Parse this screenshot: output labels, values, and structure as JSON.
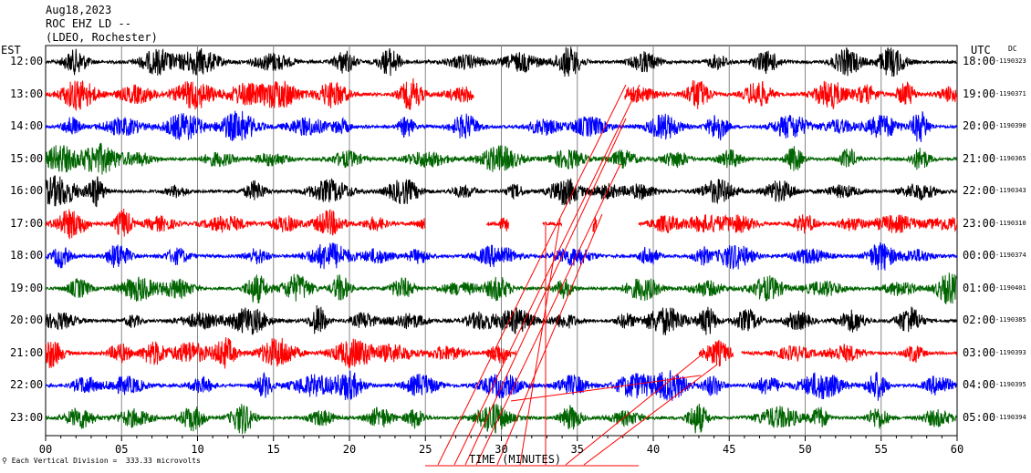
{
  "header": {
    "date": "Aug18,2023",
    "station": "ROC EHZ LD --",
    "network": "(LDEO, Rochester)"
  },
  "left_tz": "EST",
  "right_tz": "UTC",
  "dc_label": "DC",
  "footer": "Each Vertical Division =  333.33 microvolts",
  "chart_data": {
    "type": "line",
    "title": "",
    "xlabel": "TIME (MINUTES)",
    "xlim": [
      0,
      60
    ],
    "x_ticks": [
      "00",
      "05",
      "10",
      "15",
      "20",
      "25",
      "30",
      "35",
      "40",
      "45",
      "50",
      "55",
      "60"
    ],
    "grid": "vertical every minute of 5",
    "colors": [
      "#000000",
      "#ff0000",
      "#0000ff",
      "#006400"
    ],
    "rows": [
      {
        "est": "12:00",
        "utc": "18:00",
        "dc": "-1190323",
        "color": "#000000",
        "gaps": []
      },
      {
        "est": "13:00",
        "utc": "19:00",
        "dc": "-1190371",
        "color": "#ff0000",
        "gaps": [
          [
            28.2,
            38.1
          ]
        ]
      },
      {
        "est": "14:00",
        "utc": "20:00",
        "dc": "-1190390",
        "color": "#0000ff",
        "gaps": []
      },
      {
        "est": "15:00",
        "utc": "21:00",
        "dc": "-1190365",
        "color": "#006400",
        "gaps": []
      },
      {
        "est": "16:00",
        "utc": "22:00",
        "dc": "-1190343",
        "color": "#000000",
        "gaps": []
      },
      {
        "est": "17:00",
        "utc": "23:00",
        "dc": "-1190310",
        "color": "#ff0000",
        "gaps": [
          [
            25.0,
            29.0
          ],
          [
            30.5,
            32.7
          ],
          [
            34.0,
            36.0
          ],
          [
            36.3,
            39.0
          ]
        ]
      },
      {
        "est": "18:00",
        "utc": "00:00",
        "dc": "-1190374",
        "color": "#0000ff",
        "gaps": []
      },
      {
        "est": "19:00",
        "utc": "01:00",
        "dc": "-1190401",
        "color": "#006400",
        "gaps": []
      },
      {
        "est": "20:00",
        "utc": "02:00",
        "dc": "-1190385",
        "color": "#000000",
        "gaps": []
      },
      {
        "est": "21:00",
        "utc": "03:00",
        "dc": "-1190393",
        "color": "#ff0000",
        "gaps": [
          [
            31.0,
            43.0
          ],
          [
            45.3,
            45.8
          ]
        ]
      },
      {
        "est": "22:00",
        "utc": "04:00",
        "dc": "-1190395",
        "color": "#0000ff",
        "gaps": []
      },
      {
        "est": "23:00",
        "utc": "05:00",
        "dc": "-1190394",
        "color": "#006400",
        "gaps": []
      }
    ],
    "diagonal_lines_color": "#ff0000"
  }
}
